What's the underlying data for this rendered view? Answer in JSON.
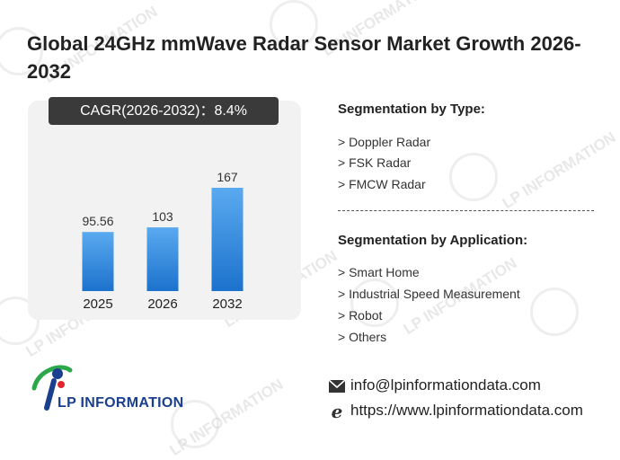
{
  "header": {
    "title": "Global 24GHz mmWave Radar Sensor Market Growth 2026-2032"
  },
  "cagr_label": "CAGR(2026-2032)：8.4%",
  "watermark_text": "LP INFORMATION",
  "chart_data": {
    "type": "bar",
    "categories": [
      "2025",
      "2026",
      "2032"
    ],
    "values": [
      95.56,
      103,
      167
    ],
    "value_labels": [
      "95.56",
      "103",
      "167"
    ],
    "title": "",
    "xlabel": "",
    "ylabel": "",
    "ylim": [
      0,
      190
    ],
    "bar_color_top": "#5aaaf0",
    "bar_color_bottom": "#1c72cc",
    "grid": false
  },
  "segmentation": {
    "type_heading": "Segmentation by Type:",
    "types": [
      "> Doppler Radar",
      "> FSK Radar",
      "> FMCW Radar"
    ],
    "application_heading": "Segmentation by Application:",
    "applications": [
      "> Smart Home",
      "> Industrial Speed Measurement",
      "> Robot",
      "> Others"
    ]
  },
  "contact": {
    "email": "info@lpinformationdata.com",
    "website": "https://www.lpinformationdata.com",
    "email_icon": "envelope-icon",
    "web_icon": "browser-e-icon"
  },
  "logo": {
    "text": "LP INFORMATION",
    "colors": {
      "blue": "#1b3f8f",
      "green": "#2aa84a",
      "red": "#e0262c"
    }
  }
}
